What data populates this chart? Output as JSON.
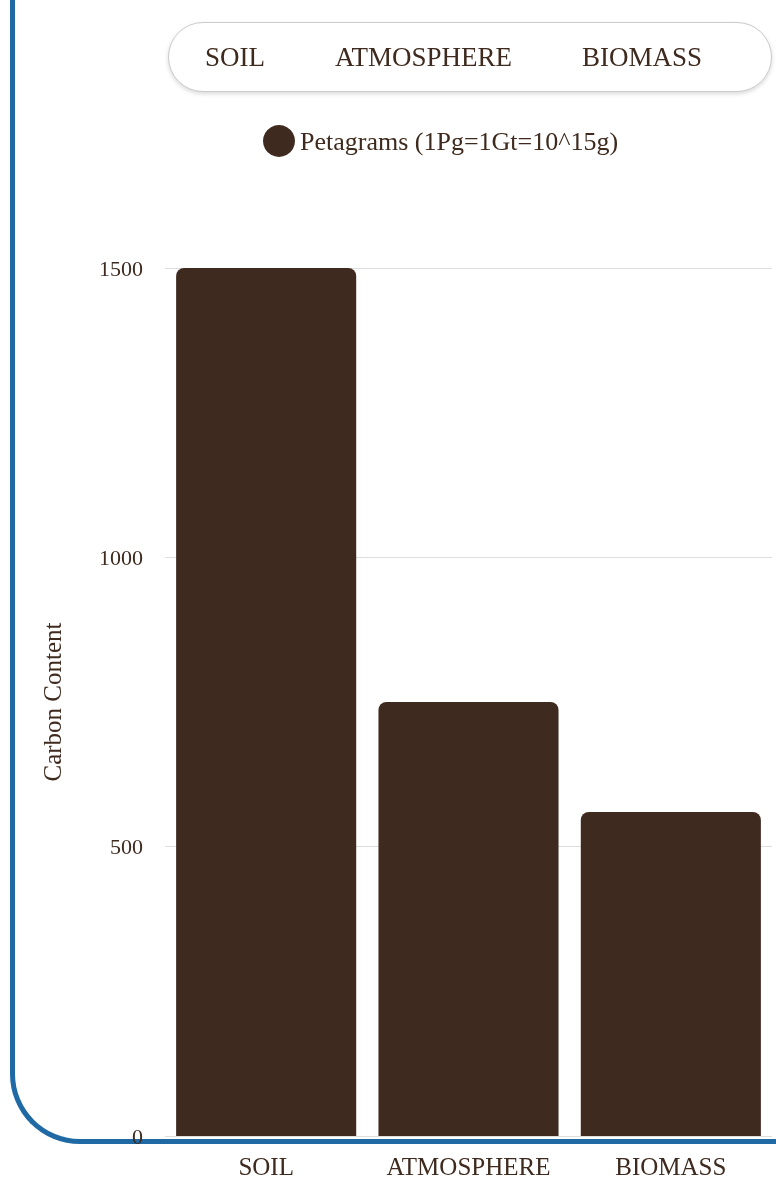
{
  "chart_data": {
    "type": "bar",
    "ylabel": "Carbon Content",
    "categories": [
      "SOIL",
      "ATMOSPHERE",
      "BIOMASS"
    ],
    "series": [
      {
        "name": "Petagrams (1Pg=1Gt=10^15g)",
        "color": "#3e2a1e",
        "values": [
          1500,
          750,
          560
        ]
      }
    ],
    "ylim": [
      0,
      1500
    ],
    "yticks": [
      0,
      500,
      1000,
      1500
    ],
    "grid": "y",
    "legend": "top"
  }
}
